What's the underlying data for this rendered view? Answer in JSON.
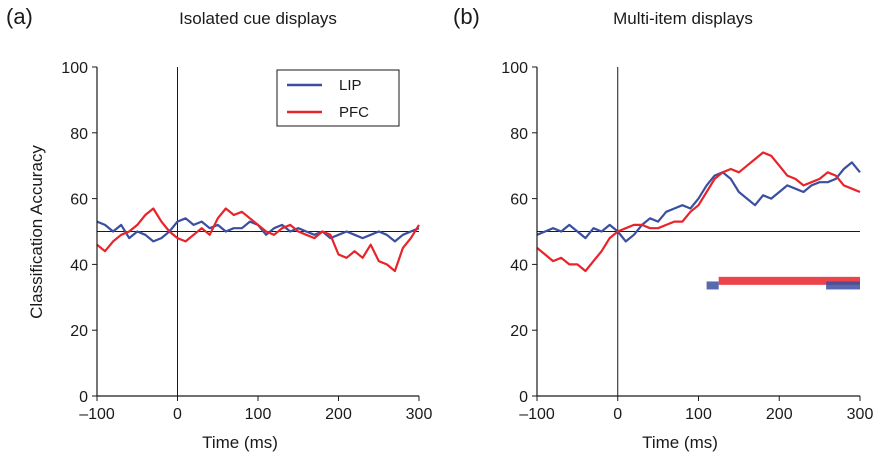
{
  "chart_data": [
    {
      "panel": "(a)",
      "title": "Isolated cue displays",
      "type": "line",
      "xlabel": "Time (ms)",
      "ylabel": "Classification Accuracy",
      "xlim": [
        -100,
        300
      ],
      "ylim": [
        0,
        100
      ],
      "xticks": [
        "–100",
        "0",
        "100",
        "200",
        "300"
      ],
      "yticks": [
        "0",
        "20",
        "40",
        "60",
        "80",
        "100"
      ],
      "chance_level": 50,
      "legend": {
        "position": "top-right",
        "entries": [
          "LIP",
          "PFC"
        ]
      },
      "series": [
        {
          "name": "LIP",
          "color": "#3b4fa0",
          "x": [
            -100,
            -90,
            -80,
            -70,
            -60,
            -50,
            -40,
            -30,
            -20,
            -10,
            0,
            10,
            20,
            30,
            40,
            50,
            60,
            70,
            80,
            90,
            100,
            110,
            120,
            130,
            140,
            150,
            160,
            170,
            180,
            190,
            200,
            210,
            220,
            230,
            240,
            250,
            260,
            270,
            280,
            290,
            300
          ],
          "y": [
            53,
            52,
            50,
            52,
            48,
            50,
            49,
            47,
            48,
            50,
            53,
            54,
            52,
            53,
            51,
            52,
            50,
            51,
            51,
            53,
            52,
            49,
            51,
            52,
            50,
            51,
            50,
            49,
            50,
            48,
            49,
            50,
            49,
            48,
            49,
            50,
            49,
            47,
            49,
            50,
            51
          ]
        },
        {
          "name": "PFC",
          "color": "#e8232a",
          "x": [
            -100,
            -90,
            -80,
            -70,
            -60,
            -50,
            -40,
            -30,
            -20,
            -10,
            0,
            10,
            20,
            30,
            40,
            50,
            60,
            70,
            80,
            90,
            100,
            110,
            120,
            130,
            140,
            150,
            160,
            170,
            180,
            190,
            200,
            210,
            220,
            230,
            240,
            250,
            260,
            270,
            280,
            290,
            300
          ],
          "y": [
            46,
            44,
            47,
            49,
            50,
            52,
            55,
            57,
            53,
            50,
            48,
            47,
            49,
            51,
            49,
            54,
            57,
            55,
            56,
            54,
            52,
            50,
            49,
            51,
            52,
            50,
            49,
            48,
            50,
            49,
            43,
            42,
            44,
            42,
            46,
            41,
            40,
            38,
            45,
            48,
            52
          ]
        }
      ]
    },
    {
      "panel": "(b)",
      "title": "Multi-item displays",
      "type": "line",
      "xlabel": "Time (ms)",
      "ylabel": "",
      "xlim": [
        -100,
        300
      ],
      "ylim": [
        0,
        100
      ],
      "xticks": [
        "–100",
        "0",
        "100",
        "200",
        "300"
      ],
      "yticks": [
        "0",
        "20",
        "40",
        "60",
        "80",
        "100"
      ],
      "chance_level": 50,
      "series": [
        {
          "name": "LIP",
          "color": "#3b4fa0",
          "x": [
            -100,
            -90,
            -80,
            -70,
            -60,
            -50,
            -40,
            -30,
            -20,
            -10,
            0,
            10,
            20,
            30,
            40,
            50,
            60,
            70,
            80,
            90,
            100,
            110,
            120,
            130,
            140,
            150,
            160,
            170,
            180,
            190,
            200,
            210,
            220,
            230,
            240,
            250,
            260,
            270,
            280,
            290,
            300
          ],
          "y": [
            49,
            50,
            51,
            50,
            52,
            50,
            48,
            51,
            50,
            52,
            50,
            47,
            49,
            52,
            54,
            53,
            56,
            57,
            58,
            57,
            60,
            64,
            67,
            68,
            66,
            62,
            60,
            58,
            61,
            60,
            62,
            64,
            63,
            62,
            64,
            65,
            65,
            66,
            69,
            71,
            68
          ]
        },
        {
          "name": "PFC",
          "color": "#e8232a",
          "x": [
            -100,
            -90,
            -80,
            -70,
            -60,
            -50,
            -40,
            -30,
            -20,
            -10,
            0,
            10,
            20,
            30,
            40,
            50,
            60,
            70,
            80,
            90,
            100,
            110,
            120,
            130,
            140,
            150,
            160,
            170,
            180,
            190,
            200,
            210,
            220,
            230,
            240,
            250,
            260,
            270,
            280,
            290,
            300
          ],
          "y": [
            45,
            43,
            41,
            42,
            40,
            40,
            38,
            41,
            44,
            48,
            50,
            51,
            52,
            52,
            51,
            51,
            52,
            53,
            53,
            56,
            58,
            62,
            66,
            68,
            69,
            68,
            70,
            72,
            74,
            73,
            70,
            67,
            66,
            64,
            65,
            66,
            68,
            67,
            64,
            63,
            62
          ]
        }
      ],
      "significance_bars": [
        {
          "series": "PFC",
          "color": "#e8232a",
          "y": 35,
          "ranges": [
            [
              125,
              300
            ]
          ]
        },
        {
          "series": "LIP",
          "color": "#3b4fa0",
          "y": 33.6,
          "ranges": [
            [
              110,
              125
            ],
            [
              258,
              300
            ]
          ]
        }
      ]
    }
  ]
}
